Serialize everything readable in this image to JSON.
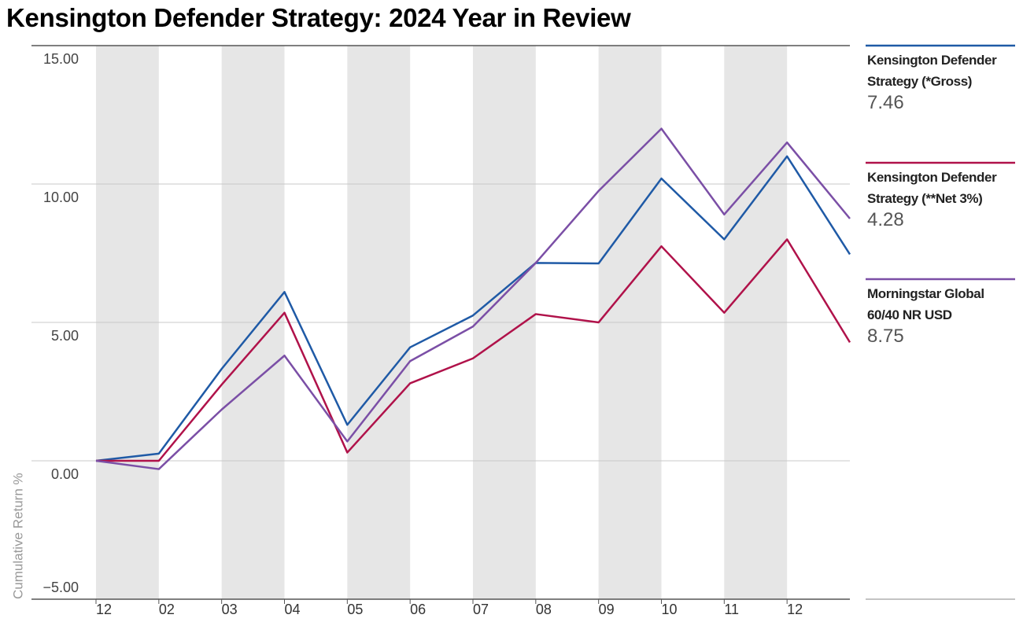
{
  "chart_data": {
    "type": "line",
    "title": "Kensington Defender Strategy: 2024 Year in Review",
    "y_label": "Cumulative Return %",
    "categories": [
      "12",
      "02",
      "03",
      "04",
      "05",
      "06",
      "07",
      "08",
      "09",
      "10",
      "11",
      "12",
      null
    ],
    "ylim": [
      -5,
      15
    ],
    "yticks": [
      {
        "value": -5,
        "label": "−5.00"
      },
      {
        "value": 0,
        "label": "0.00"
      },
      {
        "value": 5,
        "label": "5.00"
      },
      {
        "value": 10,
        "label": "10.00"
      },
      {
        "value": 15,
        "label": "15.00"
      }
    ],
    "grid": true,
    "series": [
      {
        "name": "Kensington Defender Strategy (*Gross)",
        "color": "#1f5aa6",
        "values": [
          0,
          0.26,
          3.32,
          6.1,
          1.3,
          4.1,
          5.25,
          7.15,
          7.13,
          10.2,
          8.0,
          11.0,
          7.46
        ]
      },
      {
        "name": "Kensington Defender Strategy (**Net 3%)",
        "color": "#b0124a",
        "values": [
          0,
          0.0,
          2.75,
          5.35,
          0.3,
          2.8,
          3.7,
          5.3,
          5.0,
          7.75,
          5.35,
          8.0,
          4.28
        ]
      },
      {
        "name": "Morningstar Global 60/40 NR USD",
        "color": "#7b4fa6",
        "values": [
          0,
          -0.3,
          1.85,
          3.8,
          0.7,
          3.6,
          4.85,
          7.15,
          9.75,
          12.0,
          8.9,
          11.5,
          8.75
        ]
      }
    ]
  }
}
